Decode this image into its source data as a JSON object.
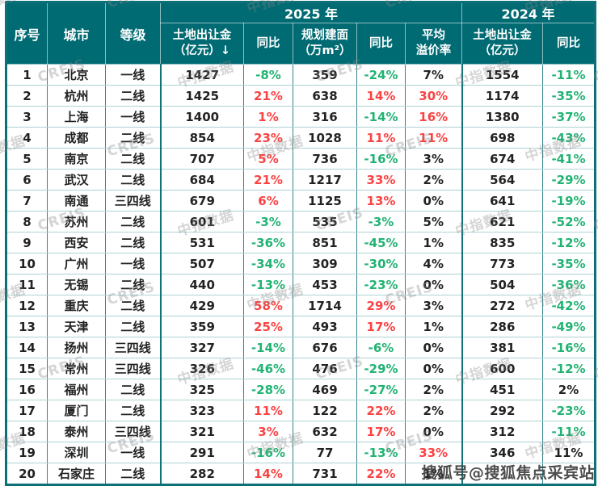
{
  "watermark": {
    "cn_text": "中指数据",
    "en_text": "CREIS",
    "sohu_text": "搜狐号@搜狐焦点采宾站"
  },
  "colors": {
    "header_bg": "#006b73",
    "positive_red": "#fb4343",
    "negative_green": "#21b373",
    "neutral_black": "#222222",
    "grid_vertical_teal": "#35858a",
    "grid_horizontal_teal": "#aed2d4",
    "outer_border_teal": "#0e7077"
  },
  "header": {
    "serial": "序号",
    "city": "城市",
    "tier": "等级",
    "group_2025": "2025 年",
    "group_2024": "2024 年",
    "fee25_l1": "土地出让金",
    "fee25_l2": "（亿元）↓",
    "yoy_fee25": "同比",
    "area_l1": "规划建面",
    "area_l2": "（万m²）",
    "yoy_area": "同比",
    "premium_l1": "平均",
    "premium_l2": "溢价率",
    "fee24_l1": "土地出让金",
    "fee24_l2": "（亿元）",
    "yoy_fee24": "同比"
  },
  "chart_data": {
    "type": "table",
    "title": "",
    "column_groups": [
      {
        "label": "2025 年",
        "span": 5
      },
      {
        "label": "2024 年",
        "span": 2
      }
    ],
    "columns": [
      "序号",
      "城市",
      "等级",
      "土地出让金（亿元）↓",
      "同比",
      "规划建面（万m²）",
      "同比",
      "平均溢价率",
      "土地出让金（亿元）",
      "同比"
    ],
    "rows": [
      {
        "no": "1",
        "city": "北京",
        "tier": "一线",
        "fee25": "1427",
        "yoy25": "-8%",
        "yoy25_c": "down",
        "area25": "359",
        "yoy_area": "-24%",
        "yoy_area_c": "down",
        "premium": "7%",
        "premium_c": "flat",
        "fee24": "1554",
        "yoy24": "-11%",
        "yoy24_c": "down"
      },
      {
        "no": "2",
        "city": "杭州",
        "tier": "二线",
        "fee25": "1425",
        "yoy25": "21%",
        "yoy25_c": "up",
        "area25": "638",
        "yoy_area": "14%",
        "yoy_area_c": "up",
        "premium": "30%",
        "premium_c": "up",
        "fee24": "1174",
        "yoy24": "-35%",
        "yoy24_c": "down"
      },
      {
        "no": "3",
        "city": "上海",
        "tier": "一线",
        "fee25": "1400",
        "yoy25": "1%",
        "yoy25_c": "up",
        "area25": "316",
        "yoy_area": "-14%",
        "yoy_area_c": "down",
        "premium": "16%",
        "premium_c": "up",
        "fee24": "1380",
        "yoy24": "-37%",
        "yoy24_c": "down"
      },
      {
        "no": "4",
        "city": "成都",
        "tier": "二线",
        "fee25": "854",
        "yoy25": "23%",
        "yoy25_c": "up",
        "area25": "1028",
        "yoy_area": "11%",
        "yoy_area_c": "up",
        "premium": "11%",
        "premium_c": "up",
        "fee24": "698",
        "yoy24": "-43%",
        "yoy24_c": "down"
      },
      {
        "no": "5",
        "city": "南京",
        "tier": "二线",
        "fee25": "707",
        "yoy25": "5%",
        "yoy25_c": "up",
        "area25": "736",
        "yoy_area": "-16%",
        "yoy_area_c": "down",
        "premium": "3%",
        "premium_c": "flat",
        "fee24": "674",
        "yoy24": "-41%",
        "yoy24_c": "down"
      },
      {
        "no": "6",
        "city": "武汉",
        "tier": "二线",
        "fee25": "684",
        "yoy25": "21%",
        "yoy25_c": "up",
        "area25": "1217",
        "yoy_area": "33%",
        "yoy_area_c": "up",
        "premium": "2%",
        "premium_c": "flat",
        "fee24": "564",
        "yoy24": "-29%",
        "yoy24_c": "down"
      },
      {
        "no": "7",
        "city": "南通",
        "tier": "三四线",
        "fee25": "679",
        "yoy25": "6%",
        "yoy25_c": "up",
        "area25": "1125",
        "yoy_area": "13%",
        "yoy_area_c": "up",
        "premium": "0%",
        "premium_c": "flat",
        "fee24": "641",
        "yoy24": "-19%",
        "yoy24_c": "down"
      },
      {
        "no": "8",
        "city": "苏州",
        "tier": "二线",
        "fee25": "601",
        "yoy25": "-3%",
        "yoy25_c": "down",
        "area25": "535",
        "yoy_area": "-3%",
        "yoy_area_c": "down",
        "premium": "5%",
        "premium_c": "flat",
        "fee24": "621",
        "yoy24": "-52%",
        "yoy24_c": "down"
      },
      {
        "no": "9",
        "city": "西安",
        "tier": "二线",
        "fee25": "531",
        "yoy25": "-36%",
        "yoy25_c": "down",
        "area25": "851",
        "yoy_area": "-45%",
        "yoy_area_c": "down",
        "premium": "1%",
        "premium_c": "flat",
        "fee24": "835",
        "yoy24": "-12%",
        "yoy24_c": "down"
      },
      {
        "no": "10",
        "city": "广州",
        "tier": "一线",
        "fee25": "507",
        "yoy25": "-34%",
        "yoy25_c": "down",
        "area25": "309",
        "yoy_area": "-30%",
        "yoy_area_c": "down",
        "premium": "4%",
        "premium_c": "flat",
        "fee24": "773",
        "yoy24": "-35%",
        "yoy24_c": "down"
      },
      {
        "no": "11",
        "city": "无锡",
        "tier": "二线",
        "fee25": "440",
        "yoy25": "-13%",
        "yoy25_c": "down",
        "area25": "453",
        "yoy_area": "-23%",
        "yoy_area_c": "down",
        "premium": "0%",
        "premium_c": "flat",
        "fee24": "504",
        "yoy24": "-36%",
        "yoy24_c": "down"
      },
      {
        "no": "12",
        "city": "重庆",
        "tier": "二线",
        "fee25": "429",
        "yoy25": "58%",
        "yoy25_c": "up",
        "area25": "1714",
        "yoy_area": "29%",
        "yoy_area_c": "up",
        "premium": "3%",
        "premium_c": "flat",
        "fee24": "272",
        "yoy24": "-42%",
        "yoy24_c": "down"
      },
      {
        "no": "13",
        "city": "天津",
        "tier": "二线",
        "fee25": "359",
        "yoy25": "25%",
        "yoy25_c": "up",
        "area25": "493",
        "yoy_area": "17%",
        "yoy_area_c": "up",
        "premium": "1%",
        "premium_c": "flat",
        "fee24": "286",
        "yoy24": "-49%",
        "yoy24_c": "down"
      },
      {
        "no": "14",
        "city": "扬州",
        "tier": "三四线",
        "fee25": "327",
        "yoy25": "-14%",
        "yoy25_c": "down",
        "area25": "676",
        "yoy_area": "-6%",
        "yoy_area_c": "down",
        "premium": "0%",
        "premium_c": "flat",
        "fee24": "381",
        "yoy24": "-16%",
        "yoy24_c": "down"
      },
      {
        "no": "15",
        "city": "常州",
        "tier": "三四线",
        "fee25": "326",
        "yoy25": "-46%",
        "yoy25_c": "down",
        "area25": "476",
        "yoy_area": "-29%",
        "yoy_area_c": "down",
        "premium": "0%",
        "premium_c": "flat",
        "fee24": "600",
        "yoy24": "-12%",
        "yoy24_c": "down"
      },
      {
        "no": "16",
        "city": "福州",
        "tier": "二线",
        "fee25": "325",
        "yoy25": "-28%",
        "yoy25_c": "down",
        "area25": "469",
        "yoy_area": "-27%",
        "yoy_area_c": "down",
        "premium": "2%",
        "premium_c": "flat",
        "fee24": "451",
        "yoy24": "2%",
        "yoy24_c": "flat"
      },
      {
        "no": "17",
        "city": "厦门",
        "tier": "二线",
        "fee25": "323",
        "yoy25": "11%",
        "yoy25_c": "up",
        "area25": "122",
        "yoy_area": "22%",
        "yoy_area_c": "up",
        "premium": "2%",
        "premium_c": "flat",
        "fee24": "292",
        "yoy24": "-23%",
        "yoy24_c": "down"
      },
      {
        "no": "18",
        "city": "泰州",
        "tier": "三四线",
        "fee25": "321",
        "yoy25": "3%",
        "yoy25_c": "up",
        "area25": "632",
        "yoy_area": "17%",
        "yoy_area_c": "up",
        "premium": "0%",
        "premium_c": "flat",
        "fee24": "312",
        "yoy24": "-11%",
        "yoy24_c": "down"
      },
      {
        "no": "19",
        "city": "深圳",
        "tier": "一线",
        "fee25": "291",
        "yoy25": "-16%",
        "yoy25_c": "down",
        "area25": "77",
        "yoy_area": "-13%",
        "yoy_area_c": "down",
        "premium": "33%",
        "premium_c": "up",
        "fee24": "346",
        "yoy24": "11%",
        "yoy24_c": "flat"
      },
      {
        "no": "20",
        "city": "石家庄",
        "tier": "二线",
        "fee25": "282",
        "yoy25": "14%",
        "yoy25_c": "up",
        "area25": "731",
        "yoy_area": "22%",
        "yoy_area_c": "up",
        "premium": "1%",
        "premium_c": "flat",
        "fee24": "",
        "yoy24": "",
        "yoy24_c": "flat"
      }
    ]
  }
}
